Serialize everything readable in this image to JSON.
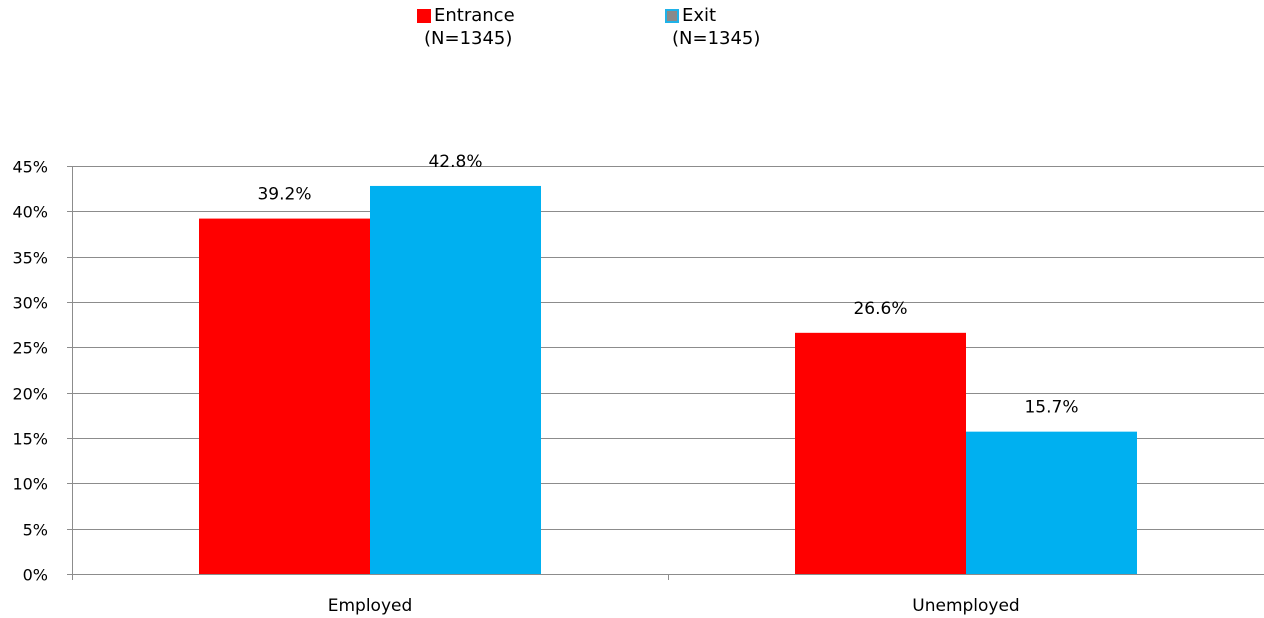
{
  "chart_data": {
    "type": "bar",
    "categories": [
      "Employed",
      "Unemployed"
    ],
    "series": [
      {
        "name": "Entrance",
        "sample_label": "(N=1345)",
        "color": "#ff0000",
        "values": [
          39.2,
          26.6
        ],
        "value_labels": [
          "39.2%",
          "26.6%"
        ]
      },
      {
        "name": "Exit",
        "sample_label": "(N=1345)",
        "color": "#00b0f0",
        "legend_swatch_color": "#8a8a8a",
        "legend_swatch_border": "#1fb2e8",
        "values": [
          42.8,
          15.7
        ],
        "value_labels": [
          "42.8%",
          "15.7%"
        ]
      }
    ],
    "ylim": [
      0,
      45
    ],
    "yticks": [
      0,
      5,
      10,
      15,
      20,
      25,
      30,
      35,
      40,
      45
    ],
    "ytick_labels": [
      "0%",
      "5%",
      "10%",
      "15%",
      "20%",
      "25%",
      "30%",
      "35%",
      "40%",
      "45%"
    ],
    "grid": true,
    "legend_position": "top-center"
  }
}
